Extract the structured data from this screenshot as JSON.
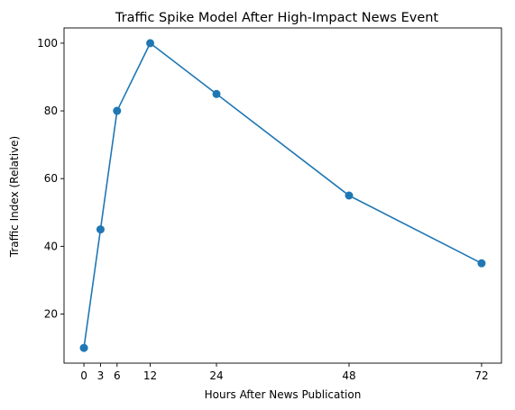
{
  "chart_data": {
    "type": "line",
    "title": "Traffic Spike Model After High-Impact News Event",
    "xlabel": "Hours After News Publication",
    "ylabel": "Traffic Index (Relative)",
    "x": [
      0,
      3,
      6,
      12,
      24,
      48,
      72
    ],
    "series": [
      {
        "values": [
          10,
          45,
          80,
          100,
          85,
          55,
          35
        ],
        "color": "#1f77b4",
        "marker": "circle"
      }
    ],
    "xticks": [
      0,
      3,
      6,
      12,
      24,
      48,
      72
    ],
    "yticks": [
      20,
      40,
      60,
      80,
      100
    ],
    "xlim": [
      -3.6,
      75.6
    ],
    "ylim": [
      5.5,
      104.5
    ],
    "grid": false,
    "legend": "none"
  }
}
